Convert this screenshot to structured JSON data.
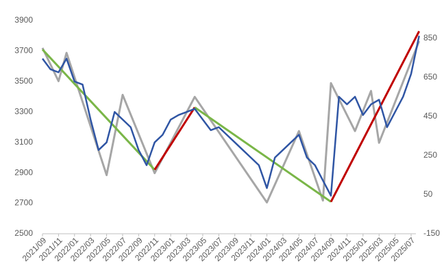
{
  "chart_data": {
    "type": "line",
    "x": [
      "2021/09",
      "2021/10",
      "2021/11",
      "2021/12",
      "2022/01",
      "2022/02",
      "2022/03",
      "2022/04",
      "2022/05",
      "2022/06",
      "2022/07",
      "2022/08",
      "2022/09",
      "2022/10",
      "2022/11",
      "2022/12",
      "2023/01",
      "2023/02",
      "2023/03",
      "2023/04",
      "2023/05",
      "2023/06",
      "2023/07",
      "2023/08",
      "2023/09",
      "2023/10",
      "2023/11",
      "2023/12",
      "2024/01",
      "2024/02",
      "2024/03",
      "2024/04",
      "2024/05",
      "2024/06",
      "2024/07",
      "2024/08",
      "2024/09",
      "2024/10",
      "2024/11",
      "2024/12",
      "2025/01",
      "2025/02",
      "2025/03",
      "2025/04",
      "2025/05",
      "2025/06",
      "2025/07",
      "2025/08"
    ],
    "xticks": [
      "2021/09",
      "2021/11",
      "2022/01",
      "2022/03",
      "2022/05",
      "2022/07",
      "2022/09",
      "2022/11",
      "2023/01",
      "2023/03",
      "2023/05",
      "2023/07",
      "2023/09",
      "2023/11",
      "2024/01",
      "2024/03",
      "2024/05",
      "2024/07",
      "2024/09",
      "2024/11",
      "2025/01",
      "2025/03",
      "2025/05",
      "2025/07"
    ],
    "ylim": [
      2500,
      3900
    ],
    "yticks": [
      2500,
      2700,
      2900,
      3100,
      3300,
      3500,
      3700,
      3900
    ],
    "y2lim": [
      -150,
      940
    ],
    "y2ticks": [
      -150,
      50,
      250,
      450,
      650,
      850
    ],
    "series": [
      {
        "color": "#2f55a4",
        "values": [
          3650,
          3580,
          3560,
          3650,
          3500,
          3480,
          3250,
          3050,
          3100,
          3300,
          3250,
          3200,
          3050,
          2950,
          3100,
          3150,
          3250,
          3280,
          3300,
          3320,
          3250,
          3180,
          3200,
          3150,
          3100,
          3050,
          3000,
          2950,
          2800,
          3000,
          3050,
          3100,
          3150,
          3000,
          2950,
          2850,
          2750,
          3400,
          3350,
          3400,
          3280,
          3350,
          3380,
          3200,
          3300,
          3400,
          3550,
          3800
        ]
      },
      {
        "color": "#a6a6a6",
        "axis": "y2",
        "x": [
          "2021/09",
          "2021/11",
          "2021/12",
          "2022/05",
          "2022/07",
          "2022/11",
          "2023/04",
          "2024/01",
          "2024/05",
          "2024/08",
          "2024/09",
          "2024/12",
          "2025/02",
          "2025/03",
          "2025/08"
        ],
        "values": [
          800,
          630,
          775,
          150,
          560,
          160,
          550,
          10,
          375,
          20,
          620,
          375,
          580,
          315,
          835
        ]
      },
      {
        "color": "#7ab648",
        "x": [
          "2021/09",
          "2022/11"
        ],
        "values": [
          3710,
          2920
        ]
      },
      {
        "color": "#c00000",
        "x": [
          "2022/11",
          "2023/04"
        ],
        "values": [
          2920,
          3330
        ]
      },
      {
        "color": "#7ab648",
        "x": [
          "2023/04",
          "2024/09"
        ],
        "values": [
          3330,
          2710
        ]
      },
      {
        "color": "#c00000",
        "x": [
          "2024/09",
          "2025/08"
        ],
        "values": [
          2710,
          3830
        ]
      }
    ]
  }
}
